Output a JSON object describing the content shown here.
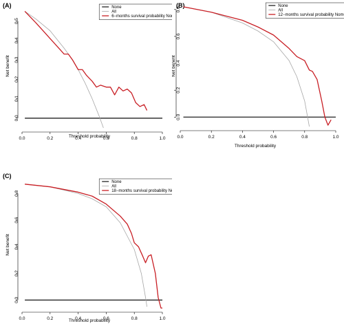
{
  "colors": {
    "none": "#333333",
    "all": "#a6a6a6",
    "model": "#c81e24"
  },
  "chart_data": [
    {
      "type": "line",
      "panel_label": "(A)",
      "xlabel": "Threshold probability",
      "ylabel": "Net benefit",
      "xlim": [
        0,
        1.0
      ],
      "ylim": [
        -0.05,
        0.58
      ],
      "xticks": [
        "0.0",
        "0.2",
        "0.4",
        "0.6",
        "0.8",
        "1.0"
      ],
      "yticks": [
        "0.0",
        "0.1",
        "0.2",
        "0.3",
        "0.4",
        "0.5"
      ],
      "legend_position": "top-right",
      "series": [
        {
          "name": "None",
          "color_key": "none",
          "x": [
            0.02,
            1.0
          ],
          "y": [
            0.0,
            0.0
          ]
        },
        {
          "name": "All",
          "color_key": "all",
          "x": [
            0.02,
            0.1,
            0.2,
            0.3,
            0.35,
            0.4,
            0.45,
            0.5,
            0.55,
            0.58
          ],
          "y": [
            0.55,
            0.51,
            0.45,
            0.36,
            0.31,
            0.25,
            0.18,
            0.1,
            0.01,
            -0.05
          ]
        },
        {
          "name": "6−months survival probability Nomogra",
          "color_key": "model",
          "x": [
            0.02,
            0.06,
            0.1,
            0.15,
            0.2,
            0.25,
            0.3,
            0.33,
            0.36,
            0.4,
            0.43,
            0.46,
            0.5,
            0.53,
            0.56,
            0.6,
            0.63,
            0.66,
            0.69,
            0.72,
            0.75,
            0.78,
            0.81,
            0.84,
            0.87,
            0.89
          ],
          "y": [
            0.55,
            0.52,
            0.49,
            0.45,
            0.41,
            0.37,
            0.33,
            0.33,
            0.3,
            0.25,
            0.25,
            0.22,
            0.19,
            0.16,
            0.17,
            0.16,
            0.16,
            0.12,
            0.16,
            0.14,
            0.15,
            0.13,
            0.08,
            0.06,
            0.07,
            0.04
          ]
        }
      ]
    },
    {
      "type": "line",
      "panel_label": "(B)",
      "xlabel": "Threshold probability",
      "ylabel": "Net benefit",
      "xlim": [
        0,
        1.0
      ],
      "ylim": [
        -0.07,
        0.84
      ],
      "xticks": [
        "0.0",
        "0.2",
        "0.4",
        "0.6",
        "0.8",
        "1.0"
      ],
      "yticks": [
        "0.0",
        "0.2",
        "0.4",
        "0.6",
        "0.8"
      ],
      "legend_position": "top-right",
      "series": [
        {
          "name": "None",
          "color_key": "none",
          "x": [
            0.02,
            1.0
          ],
          "y": [
            0.0,
            0.0
          ]
        },
        {
          "name": "All",
          "color_key": "all",
          "x": [
            0.02,
            0.2,
            0.4,
            0.5,
            0.6,
            0.7,
            0.75,
            0.8,
            0.83
          ],
          "y": [
            0.82,
            0.78,
            0.7,
            0.64,
            0.56,
            0.42,
            0.3,
            0.12,
            -0.07
          ]
        },
        {
          "name": "12−months survival probability Nomogra",
          "color_key": "model",
          "x": [
            0.02,
            0.2,
            0.4,
            0.5,
            0.6,
            0.65,
            0.7,
            0.75,
            0.8,
            0.83,
            0.85,
            0.88,
            0.91,
            0.93,
            0.95,
            0.97
          ],
          "y": [
            0.82,
            0.78,
            0.72,
            0.67,
            0.61,
            0.56,
            0.51,
            0.45,
            0.42,
            0.35,
            0.34,
            0.28,
            0.12,
            0.0,
            -0.06,
            -0.02
          ]
        }
      ]
    },
    {
      "type": "line",
      "panel_label": "(C)",
      "xlabel": "Threshold probability",
      "ylabel": "Net benefit",
      "xlim": [
        0,
        1.0
      ],
      "ylim": [
        -0.06,
        0.9
      ],
      "xticks": [
        "0.0",
        "0.2",
        "0.4",
        "0.6",
        "0.8",
        "1.0"
      ],
      "yticks": [
        "0.0",
        "0.2",
        "0.4",
        "0.6",
        "0.8"
      ],
      "legend_position": "top-right",
      "series": [
        {
          "name": "None",
          "color_key": "none",
          "x": [
            0.02,
            1.0
          ],
          "y": [
            0.0,
            0.0
          ]
        },
        {
          "name": "All",
          "color_key": "all",
          "x": [
            0.02,
            0.2,
            0.4,
            0.5,
            0.6,
            0.7,
            0.8,
            0.85,
            0.88,
            0.89
          ],
          "y": [
            0.87,
            0.85,
            0.8,
            0.76,
            0.7,
            0.58,
            0.38,
            0.2,
            0.02,
            -0.05
          ]
        },
        {
          "name": "18−months survival probability Nomogra",
          "color_key": "model",
          "x": [
            0.02,
            0.2,
            0.4,
            0.5,
            0.6,
            0.7,
            0.75,
            0.78,
            0.8,
            0.83,
            0.86,
            0.88,
            0.9,
            0.92,
            0.95,
            0.97,
            0.99,
            1.0
          ],
          "y": [
            0.87,
            0.85,
            0.81,
            0.78,
            0.72,
            0.63,
            0.57,
            0.5,
            0.43,
            0.4,
            0.33,
            0.28,
            0.33,
            0.34,
            0.2,
            0.02,
            -0.06,
            -0.06
          ]
        }
      ]
    }
  ]
}
